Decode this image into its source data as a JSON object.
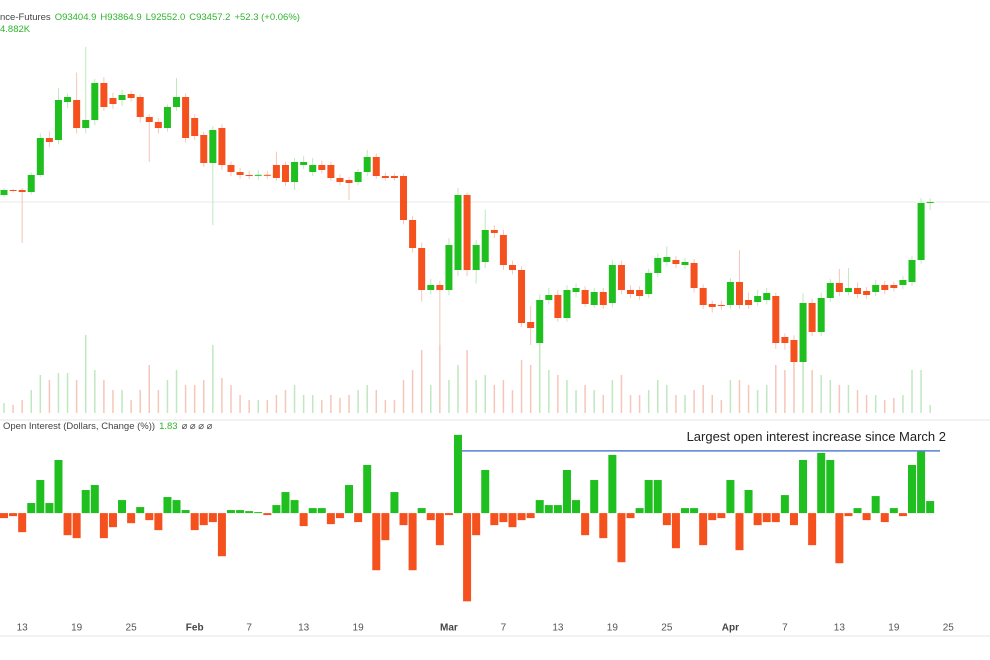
{
  "chart_data": {
    "type": "candlestick",
    "header": {
      "symbol": "nce-Futures",
      "open": "O93404.9",
      "high": "H93864.9",
      "low": "L92552.0",
      "close": "C93457.2",
      "change": "+52.3 (+0.06%)",
      "volume": "4.882K"
    },
    "categories": [
      null,
      null,
      "13",
      null,
      null,
      null,
      null,
      null,
      "19",
      null,
      null,
      null,
      null,
      null,
      "25",
      null,
      null,
      null,
      null,
      null,
      null,
      "Feb",
      null,
      null,
      null,
      null,
      null,
      "7",
      null,
      null,
      null,
      null,
      null,
      "13",
      null,
      null,
      null,
      null,
      null,
      "19",
      null,
      null,
      null,
      null,
      null,
      null,
      null,
      null,
      null,
      "Mar",
      null,
      null,
      null,
      null,
      null,
      "7",
      null,
      null,
      null,
      null,
      null,
      "13",
      null,
      null,
      null,
      null,
      null,
      "19",
      null,
      null,
      null,
      null,
      null,
      "25",
      null,
      null,
      null,
      null,
      null,
      null,
      "Apr",
      null,
      null,
      null,
      null,
      null,
      "7",
      null,
      null,
      null,
      null,
      null,
      "13",
      null,
      null,
      null,
      null,
      null,
      "19",
      null,
      null,
      null,
      null,
      null,
      "25"
    ],
    "open": [
      94230,
      94780,
      94780,
      94560,
      96430,
      100500,
      100280,
      104460,
      104680,
      101600,
      102480,
      106550,
      104900,
      104680,
      105340,
      105010,
      102810,
      102260,
      101600,
      103910,
      105010,
      102700,
      100830,
      97750,
      101600,
      97530,
      96760,
      96430,
      96400,
      96450,
      97530,
      97530,
      95660,
      97530,
      96760,
      97530,
      97530,
      96100,
      95880,
      95660,
      96760,
      98410,
      96320,
      96320,
      96320,
      91480,
      88400,
      83780,
      84330,
      83780,
      85980,
      94230,
      85980,
      86860,
      90380,
      89830,
      86530,
      85980,
      80260,
      77950,
      82680,
      83230,
      80700,
      83560,
      83780,
      82130,
      83560,
      82350,
      86530,
      83780,
      83780,
      83340,
      85650,
      86860,
      87080,
      86530,
      86750,
      84000,
      82240,
      82130,
      82130,
      84660,
      82680,
      82460,
      82680,
      83120,
      78610,
      78280,
      75860,
      82350,
      79160,
      82900,
      84550,
      83560,
      84000,
      83670,
      83560,
      84330,
      84330,
      84330,
      84660,
      87080,
      93404.9,
      null,
      null
    ],
    "high": [
      95000,
      94900,
      95000,
      96700,
      101000,
      101200,
      106000,
      105400,
      107700,
      110510,
      107000,
      107200,
      105500,
      105800,
      105700,
      105300,
      103100,
      102700,
      104200,
      107100,
      105400,
      103100,
      101200,
      101800,
      102000,
      97900,
      97200,
      96900,
      97000,
      96900,
      99000,
      97900,
      98300,
      98500,
      98300,
      98000,
      97900,
      96500,
      96200,
      97100,
      99200,
      98800,
      96700,
      96600,
      96600,
      91900,
      89000,
      85000,
      84800,
      89500,
      95000,
      94500,
      89300,
      92600,
      90900,
      90400,
      87000,
      86400,
      82000,
      83300,
      84000,
      83800,
      84300,
      84500,
      84200,
      84000,
      84000,
      87100,
      87000,
      84300,
      84200,
      86100,
      87800,
      88600,
      87500,
      87300,
      87200,
      84400,
      82600,
      82600,
      85100,
      88180,
      83500,
      83800,
      84000,
      83500,
      79000,
      78800,
      83400,
      82800,
      83500,
      85000,
      86100,
      86200,
      84600,
      84100,
      84900,
      84800,
      84700,
      85300,
      87500,
      93900,
      93864.9,
      null,
      null
    ],
    "low": [
      94000,
      94500,
      88950,
      94300,
      96200,
      99500,
      99800,
      103800,
      101000,
      101000,
      101900,
      103500,
      103700,
      104000,
      104500,
      102200,
      97860,
      101000,
      101200,
      103500,
      100000,
      100300,
      97300,
      90930,
      97000,
      96300,
      96000,
      96000,
      95900,
      96000,
      95800,
      95200,
      94800,
      97100,
      96300,
      96600,
      95800,
      95300,
      93680,
      95300,
      96300,
      96000,
      95800,
      95800,
      91000,
      87900,
      82500,
      83300,
      77730,
      83200,
      85300,
      85300,
      84500,
      86200,
      89500,
      86000,
      85500,
      79700,
      77730,
      77500,
      82200,
      80300,
      80300,
      83000,
      81900,
      81800,
      81700,
      81900,
      83300,
      82900,
      82700,
      82900,
      85200,
      86400,
      86200,
      86100,
      83500,
      81700,
      81300,
      81600,
      81700,
      81700,
      81700,
      82000,
      82200,
      77300,
      77200,
      75700,
      75500,
      78700,
      78700,
      82500,
      83100,
      83200,
      82900,
      82800,
      83100,
      83300,
      83600,
      83900,
      84200,
      86700,
      92552.0,
      null,
      null
    ],
    "close": [
      94780,
      94670,
      94560,
      96430,
      100500,
      100060,
      104680,
      105010,
      101600,
      102480,
      106550,
      103910,
      104240,
      105230,
      104900,
      102810,
      102260,
      101600,
      103910,
      105010,
      100500,
      100720,
      97750,
      101380,
      97530,
      96760,
      96430,
      96400,
      96450,
      96400,
      96100,
      95660,
      97860,
      97860,
      97530,
      96980,
      96100,
      95660,
      95550,
      96760,
      98410,
      96320,
      96100,
      96100,
      91480,
      88400,
      83780,
      84330,
      83780,
      88730,
      94230,
      85980,
      88730,
      90380,
      90050,
      86530,
      85980,
      80150,
      79600,
      82680,
      83230,
      80700,
      83780,
      84000,
      82240,
      83560,
      82130,
      86530,
      83780,
      83340,
      83120,
      85650,
      87300,
      87410,
      86640,
      86860,
      84000,
      82130,
      81910,
      82100,
      84660,
      82130,
      82130,
      83120,
      83450,
      77950,
      77950,
      75860,
      82350,
      79160,
      82900,
      84550,
      83560,
      84000,
      83340,
      83230,
      84330,
      83780,
      84000,
      84880,
      87080,
      93350,
      93457.2,
      null,
      null
    ],
    "volume": [
      6.1,
      4.9,
      7.9,
      14.0,
      23.2,
      20.1,
      24.4,
      24.4,
      20.1,
      47.6,
      26.2,
      20.1,
      14.0,
      14.0,
      7.9,
      14.0,
      29.3,
      14.0,
      20.1,
      26.2,
      17.1,
      17.1,
      20.1,
      41.5,
      21.4,
      17.1,
      11.0,
      7.9,
      7.9,
      7.9,
      11.0,
      14.0,
      17.1,
      11.0,
      11.0,
      7.9,
      11.0,
      9.2,
      11.0,
      14.0,
      17.1,
      14.0,
      7.9,
      7.9,
      20.1,
      26.2,
      38.4,
      17.1,
      41.5,
      20.1,
      29.3,
      38.4,
      20.1,
      23.2,
      17.1,
      20.1,
      14.0,
      32.3,
      29.3,
      44.5,
      26.2,
      23.2,
      20.1,
      14.0,
      17.1,
      14.0,
      11.0,
      20.1,
      23.2,
      11.0,
      11.0,
      14.0,
      20.1,
      17.1,
      11.0,
      11.0,
      14.0,
      17.1,
      11.0,
      7.9,
      20.1,
      20.1,
      17.1,
      14.0,
      17.1,
      29.3,
      26.2,
      41.5,
      32.3,
      26.2,
      23.2,
      20.1,
      17.1,
      17.1,
      14.0,
      11.0,
      11.0,
      7.9,
      9.2,
      11.0,
      26.2,
      26.2,
      4.882,
      null,
      null
    ],
    "up_color": "#1fbf1f",
    "down_color": "#f4511e",
    "volume_up_color": "#bfe8bf",
    "volume_down_color": "#f6c6b8",
    "ylim": [
      70030,
      115680
    ],
    "volume_ylim": [
      0,
      252
    ],
    "oi": {
      "title": "Open Interest (Dollars, Change (%))",
      "icons": "⌀ ⌀ ⌀ ⌀",
      "values": [
        -0.76,
        -0.46,
        -2.9,
        1.53,
        5.03,
        1.53,
        8.08,
        -3.36,
        -3.81,
        3.51,
        4.27,
        -3.81,
        -2.14,
        1.98,
        -1.53,
        0.92,
        -1.07,
        -2.59,
        2.44,
        1.98,
        0.46,
        -2.59,
        -1.83,
        -1.37,
        -6.56,
        0.46,
        0.46,
        0.3,
        0.15,
        -0.3,
        1.22,
        3.2,
        1.98,
        -1.98,
        0.76,
        0.76,
        -1.68,
        -0.76,
        4.27,
        -1.37,
        7.32,
        -8.69,
        -4.12,
        3.2,
        -1.83,
        -8.69,
        0.76,
        -1.07,
        -4.88,
        -0.3,
        11.9,
        -13.42,
        -3.36,
        6.56,
        -1.83,
        -1.37,
        -2.14,
        -1.07,
        -0.76,
        1.98,
        1.22,
        1.22,
        6.56,
        1.98,
        -3.36,
        5.03,
        -3.81,
        8.85,
        -7.47,
        -0.76,
        0.76,
        5.03,
        5.03,
        -1.83,
        -5.34,
        0.76,
        0.76,
        -4.88,
        -1.07,
        -0.76,
        5.03,
        -5.64,
        3.51,
        -1.83,
        -1.37,
        -1.37,
        2.74,
        -1.83,
        8.08,
        -4.88,
        9.15,
        8.08,
        -7.63,
        -0.46,
        0.76,
        -1.07,
        2.59,
        -1.37,
        0.76,
        -0.46,
        7.32,
        9.46,
        1.83,
        null,
        null
      ],
      "ylim": [
        -15.5,
        13.4
      ],
      "annotation": "Largest open interest increase since March 2",
      "line_color": "#5b7fd6"
    }
  }
}
